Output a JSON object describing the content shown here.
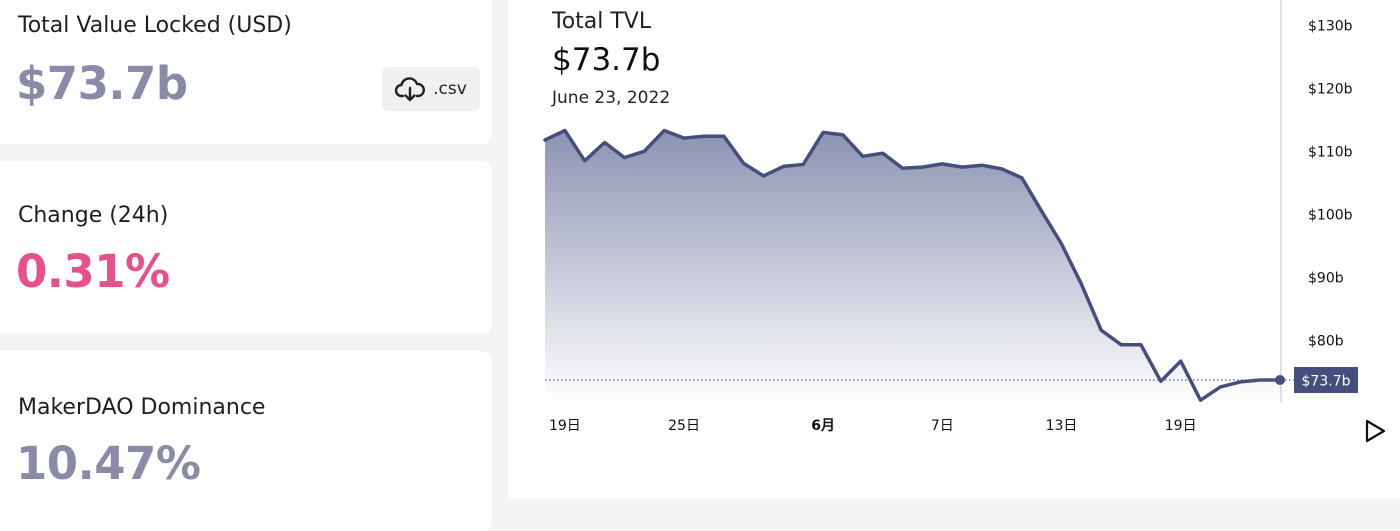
{
  "stats": {
    "tvl": {
      "label": "Total Value Locked (USD)",
      "value": "$73.7b",
      "color": "#8a8ba6"
    },
    "change": {
      "label": "Change (24h)",
      "value": "0.31%",
      "color": "#e8508b"
    },
    "dominance": {
      "label": "MakerDAO Dominance",
      "value": "10.47%",
      "color": "#8a8ba6"
    },
    "csv_label": ".csv"
  },
  "chart_header": {
    "title": "Total TVL",
    "value": "$73.7b",
    "date": "June 23, 2022"
  },
  "colors": {
    "line": "#454f7e",
    "area_top": "#8c93b2",
    "area_bottom": "#ffffff",
    "accent": "#e8508b",
    "muted": "#8a8ba6"
  },
  "chart_data": {
    "type": "area",
    "title": "Total TVL",
    "xlabel": "",
    "ylabel": "",
    "grid": false,
    "ylim": [
      70,
      135
    ],
    "yticks": [
      "$130b",
      "$120b",
      "$110b",
      "$100b",
      "$90b",
      "$80b"
    ],
    "ytick_values": [
      130,
      120,
      110,
      100,
      90,
      80
    ],
    "x_ticks": [
      {
        "label": "19日",
        "index": 1,
        "bold": false
      },
      {
        "label": "25日",
        "index": 7,
        "bold": false
      },
      {
        "label": "6月",
        "index": 14,
        "bold": true
      },
      {
        "label": "7日",
        "index": 20,
        "bold": false
      },
      {
        "label": "13日",
        "index": 26,
        "bold": false
      },
      {
        "label": "19日",
        "index": 32,
        "bold": false
      }
    ],
    "current_value": 73.7,
    "current_label": "$73.7b",
    "values": [
      111.8,
      113.3,
      108.5,
      111.4,
      109.0,
      110.0,
      113.3,
      112.1,
      112.4,
      112.4,
      108.1,
      106.1,
      107.6,
      107.9,
      113.0,
      112.6,
      109.2,
      109.7,
      107.3,
      107.5,
      108.0,
      107.5,
      107.8,
      107.2,
      105.8,
      100.5,
      95.3,
      88.9,
      81.6,
      79.3,
      79.3,
      73.5,
      76.7,
      70.5,
      72.6,
      73.4,
      73.7,
      73.7
    ]
  }
}
